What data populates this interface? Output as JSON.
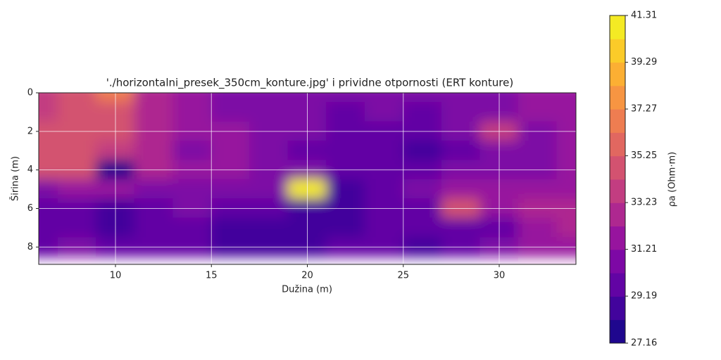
{
  "chart_data": {
    "type": "contour",
    "title": "'./horizontalni_presek_350cm_konture.jpg' i prividne otpornosti (ERT konture)",
    "xlabel": "Dužina (m)",
    "ylabel": "Širina (m)",
    "x": [
      6,
      8,
      10,
      12,
      14,
      16,
      18,
      20,
      22,
      24,
      26,
      28,
      30,
      32,
      34
    ],
    "y": [
      0,
      1,
      2,
      3,
      4,
      5,
      6,
      7,
      8
    ],
    "z": [
      [
        34,
        35,
        37,
        33,
        32,
        31,
        31,
        31,
        31,
        31,
        31,
        31,
        31,
        32,
        32
      ],
      [
        34,
        35,
        35,
        33,
        32,
        31,
        31,
        31,
        30,
        31,
        30,
        31,
        31,
        32,
        32
      ],
      [
        35,
        35,
        35,
        33,
        32,
        32,
        31,
        31,
        30,
        30,
        30,
        31,
        34,
        31,
        32
      ],
      [
        35,
        35,
        34,
        33,
        31,
        32,
        31,
        30,
        30,
        30,
        29,
        30,
        31,
        31,
        32
      ],
      [
        35,
        35,
        28,
        33,
        32,
        32,
        31,
        31,
        30,
        30,
        30,
        31,
        31,
        31,
        32
      ],
      [
        31,
        32,
        32,
        31,
        31,
        31,
        31,
        41,
        29,
        30,
        31,
        32,
        32,
        32,
        32
      ],
      [
        30,
        30,
        29,
        30,
        31,
        30,
        30,
        29,
        29,
        30,
        30,
        35,
        32,
        33,
        33
      ],
      [
        30,
        30,
        29,
        30,
        30,
        29,
        29,
        29,
        29,
        30,
        30,
        30,
        30,
        32,
        33
      ],
      [
        30,
        31,
        30,
        30,
        30,
        29,
        29,
        29,
        30,
        30,
        29,
        30,
        31,
        32,
        32
      ]
    ],
    "xlim": [
      6,
      34
    ],
    "ylim": [
      8.9,
      0
    ],
    "xticks": [
      10,
      15,
      20,
      25,
      30
    ],
    "yticks": [
      0,
      2,
      4,
      6,
      8
    ],
    "grid": true,
    "colormap": "plasma",
    "colorbar": {
      "label": "ρa (Ohm·m)",
      "lim": [
        27.16,
        41.31
      ],
      "ticks": [
        27.16,
        29.19,
        31.21,
        33.23,
        35.25,
        37.27,
        39.29,
        41.31
      ],
      "levels": 14
    }
  }
}
